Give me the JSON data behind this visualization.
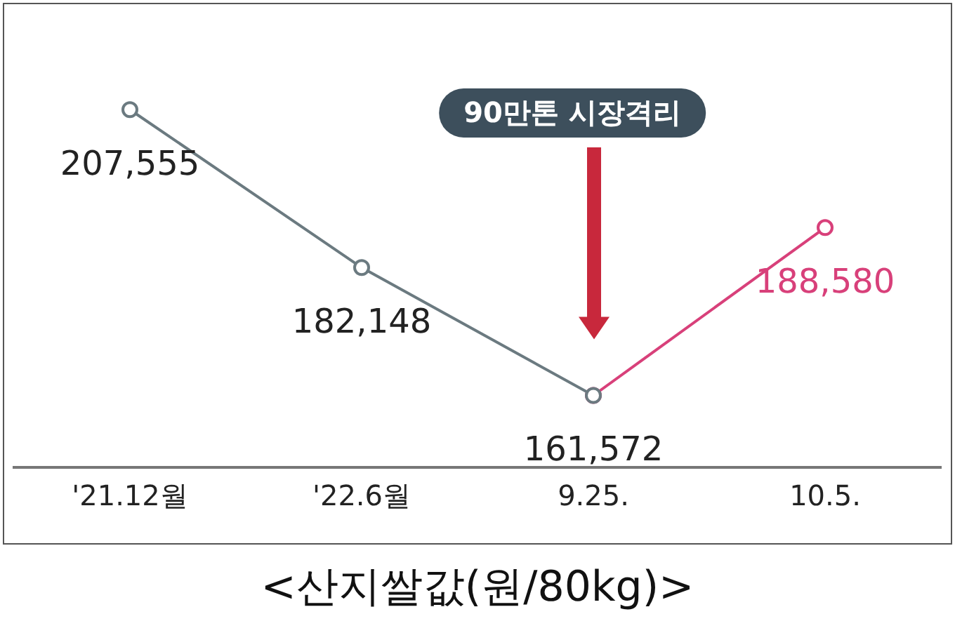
{
  "chart_data": {
    "type": "line",
    "title": "<산지쌀값(원/80kg)>",
    "categories": [
      "'21.12월",
      "'22.6월",
      "9.25.",
      "10.5."
    ],
    "series": [
      {
        "color": "#6b7a80",
        "values": [
          207555,
          182148,
          161572,
          null
        ],
        "value_labels": [
          "207,555",
          "182,148",
          "161,572",
          null
        ]
      },
      {
        "color": "#d8407a",
        "values": [
          null,
          null,
          161572,
          188580
        ],
        "value_labels": [
          null,
          null,
          null,
          "188,580"
        ]
      }
    ],
    "annotations": [
      "90만톤 시장격리"
    ],
    "marker": "circle",
    "line_style": "solid",
    "grid": false,
    "legend": false
  }
}
